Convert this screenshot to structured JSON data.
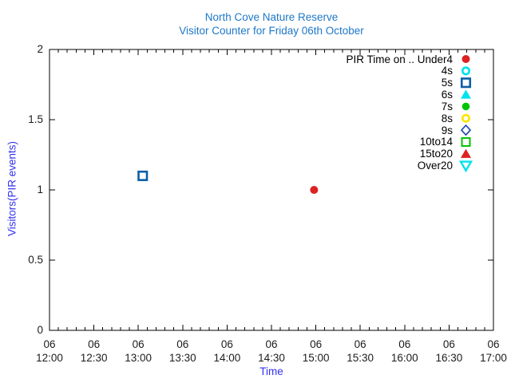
{
  "title": {
    "line1": "North Cove Nature Reserve",
    "line2": "Visitor Counter for Friday 06th October"
  },
  "colors": {
    "title": "#1e78c8",
    "axis_label": "#3333ee",
    "tick_label": "#1c1c1c",
    "legend_text": "#000000",
    "axis": "#000000",
    "background": "#ffffff",
    "red": "#dd2222",
    "cyan": "#00e2ee",
    "blue": "#0b5fa5",
    "green": "#00c400",
    "yellow": "#ffe500",
    "diamond_blue": "#1c46b0"
  },
  "chart_data": {
    "type": "scatter",
    "title": "North Cove Nature Reserve",
    "subtitle": "Visitor Counter for Friday 06th October",
    "xlabel": "Time",
    "ylabel": "Visitors(PIR events)",
    "grid": false,
    "x_axis": {
      "date_label": "06",
      "tick_times": [
        "12:00",
        "12:30",
        "13:00",
        "13:30",
        "14:00",
        "14:30",
        "15:00",
        "15:30",
        "16:00",
        "16:30",
        "17:00"
      ],
      "tick_hours": [
        12,
        12.5,
        13,
        13.5,
        14,
        14.5,
        15,
        15.5,
        16,
        16.5,
        17
      ],
      "range_hours": [
        12,
        17
      ],
      "minor_tick_minutes": 6
    },
    "y_axis": {
      "range": [
        0,
        2
      ],
      "ticks": [
        0,
        0.5,
        1,
        1.5,
        2
      ],
      "tick_labels": [
        "0",
        "0.5",
        "1",
        "1.5",
        "2"
      ]
    },
    "legend": {
      "position": "top-right",
      "entries": [
        {
          "label": "PIR Time on .. Under4",
          "series": "Under4",
          "shape": "circle",
          "filled": true,
          "color": "#dd2222",
          "size": 5
        },
        {
          "label": "4s",
          "series": "4s",
          "shape": "circle",
          "filled": false,
          "color": "#00e2ee",
          "size": 4.2,
          "stroke": 2.7
        },
        {
          "label": "5s",
          "series": "5s",
          "shape": "square",
          "filled": false,
          "color": "#0b5fa5",
          "size": 10.5,
          "stroke": 2.6
        },
        {
          "label": "6s",
          "series": "6s",
          "shape": "triangle-up",
          "filled": true,
          "color": "#00e2ee",
          "size": 6.5
        },
        {
          "label": "7s",
          "series": "7s",
          "shape": "circle",
          "filled": true,
          "color": "#00c400",
          "size": 4.8
        },
        {
          "label": "8s",
          "series": "8s",
          "shape": "circle",
          "filled": false,
          "color": "#ffe500",
          "size": 4.2,
          "stroke": 2.7
        },
        {
          "label": "9s",
          "series": "9s",
          "shape": "diamond",
          "filled": false,
          "color": "#1c46b0",
          "size": 6,
          "stroke": 1.6
        },
        {
          "label": "10to14",
          "series": "10to14",
          "shape": "square",
          "filled": false,
          "color": "#00c400",
          "size": 10,
          "stroke": 2
        },
        {
          "label": "15to20",
          "series": "15to20",
          "shape": "triangle-up",
          "filled": true,
          "color": "#dd2222",
          "size": 6.5
        },
        {
          "label": "Over20",
          "series": "Over20",
          "shape": "triangle-down",
          "filled": false,
          "color": "#00e2ee",
          "size": 6.5,
          "stroke": 2.4
        }
      ]
    },
    "points": [
      {
        "series": "5s",
        "time": "13:03",
        "x_hours": 13.05,
        "y": 1.1
      },
      {
        "series": "Under4",
        "time": "14:59",
        "x_hours": 14.98,
        "y": 1.0
      }
    ]
  }
}
